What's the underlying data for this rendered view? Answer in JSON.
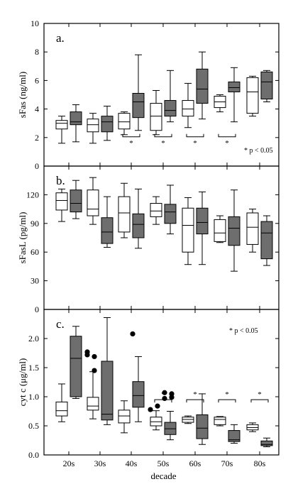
{
  "colors": {
    "white_box": "#ffffff",
    "gray_box": "#6e6e6e",
    "outline": "#000000",
    "outlier": "#000000"
  },
  "chart_data": [
    {
      "panel": "a.",
      "type": "box",
      "ylabel": "sFas (ng/ml)",
      "ylim": [
        0,
        10
      ],
      "yticks": [
        "0",
        "2",
        "4",
        "6",
        "8",
        "10"
      ],
      "categories": [
        "20s",
        "30s",
        "40s",
        "50s",
        "60s",
        "70s",
        "80s"
      ],
      "series_colors": [
        "white",
        "gray"
      ],
      "annotation": "* p < 0.05",
      "significant_categories": [
        "40s",
        "50s",
        "60s",
        "70s"
      ],
      "boxes": [
        {
          "category": "20s",
          "fill": "white",
          "whisker_low": 1.6,
          "q1": 2.6,
          "median": 3.0,
          "q3": 3.2,
          "whisker_high": 3.5
        },
        {
          "category": "20s",
          "fill": "gray",
          "whisker_low": 1.7,
          "q1": 2.9,
          "median": 3.1,
          "q3": 3.8,
          "whisker_high": 4.3
        },
        {
          "category": "30s",
          "fill": "white",
          "whisker_low": 1.6,
          "q1": 2.4,
          "median": 2.9,
          "q3": 3.3,
          "whisker_high": 3.7
        },
        {
          "category": "30s",
          "fill": "gray",
          "whisker_low": 1.8,
          "q1": 2.4,
          "median": 3.1,
          "q3": 3.5,
          "whisker_high": 4.2
        },
        {
          "category": "40s",
          "fill": "white",
          "whisker_low": 2.2,
          "q1": 2.6,
          "median": 3.1,
          "q3": 3.7,
          "whisker_high": 3.8
        },
        {
          "category": "40s",
          "fill": "gray",
          "whisker_low": 2.5,
          "q1": 3.4,
          "median": 4.5,
          "q3": 5.1,
          "whisker_high": 7.8
        },
        {
          "category": "50s",
          "fill": "white",
          "whisker_low": 2.2,
          "q1": 2.5,
          "median": 3.5,
          "q3": 4.4,
          "whisker_high": 5.3
        },
        {
          "category": "50s",
          "fill": "gray",
          "whisker_low": 3.1,
          "q1": 3.5,
          "median": 3.9,
          "q3": 4.6,
          "whisker_high": 6.7
        },
        {
          "category": "60s",
          "fill": "white",
          "whisker_low": 2.7,
          "q1": 3.5,
          "median": 4.0,
          "q3": 4.6,
          "whisker_high": 5.8
        },
        {
          "category": "60s",
          "fill": "gray",
          "whisker_low": 3.3,
          "q1": 4.4,
          "median": 5.4,
          "q3": 6.8,
          "whisker_high": 8.0
        },
        {
          "category": "70s",
          "fill": "white",
          "whisker_low": 3.8,
          "q1": 4.1,
          "median": 4.5,
          "q3": 4.9,
          "whisker_high": 5.0
        },
        {
          "category": "70s",
          "fill": "gray",
          "whisker_low": 3.1,
          "q1": 5.2,
          "median": 5.5,
          "q3": 5.9,
          "whisker_high": 6.9
        },
        {
          "category": "80s",
          "fill": "white",
          "whisker_low": 3.5,
          "q1": 3.7,
          "median": 5.2,
          "q3": 6.2,
          "whisker_high": 6.3
        },
        {
          "category": "80s",
          "fill": "gray",
          "whisker_low": 4.5,
          "q1": 4.7,
          "median": 5.9,
          "q3": 6.6,
          "whisker_high": 6.7
        }
      ]
    },
    {
      "panel": "b.",
      "type": "box",
      "ylabel": "sFasL (pg/ml)",
      "ylim": [
        0,
        150
      ],
      "yticks": [
        "0",
        "30",
        "60",
        "90",
        "120"
      ],
      "categories": [
        "20s",
        "30s",
        "40s",
        "50s",
        "60s",
        "70s",
        "80s"
      ],
      "series_colors": [
        "white",
        "gray"
      ],
      "boxes": [
        {
          "category": "20s",
          "fill": "white",
          "whisker_low": 92,
          "q1": 104,
          "median": 114,
          "q3": 122,
          "whisker_high": 126
        },
        {
          "category": "20s",
          "fill": "gray",
          "whisker_low": 95,
          "q1": 102,
          "median": 111,
          "q3": 125,
          "whisker_high": 135
        },
        {
          "category": "30s",
          "fill": "white",
          "whisker_low": 89,
          "q1": 98,
          "median": 105,
          "q3": 125,
          "whisker_high": 138
        },
        {
          "category": "30s",
          "fill": "gray",
          "whisker_low": 65,
          "q1": 69,
          "median": 81,
          "q3": 96,
          "whisker_high": 118
        },
        {
          "category": "40s",
          "fill": "white",
          "whisker_low": 75,
          "q1": 81,
          "median": 101,
          "q3": 118,
          "whisker_high": 132
        },
        {
          "category": "40s",
          "fill": "gray",
          "whisker_low": 64,
          "q1": 75,
          "median": 89,
          "q3": 100,
          "whisker_high": 126
        },
        {
          "category": "50s",
          "fill": "white",
          "whisker_low": 89,
          "q1": 97,
          "median": 103,
          "q3": 111,
          "whisker_high": 118
        },
        {
          "category": "50s",
          "fill": "gray",
          "whisker_low": 79,
          "q1": 90,
          "median": 102,
          "q3": 110,
          "whisker_high": 130
        },
        {
          "category": "60s",
          "fill": "white",
          "whisker_low": 47,
          "q1": 60,
          "median": 88,
          "q3": 106,
          "whisker_high": 117
        },
        {
          "category": "60s",
          "fill": "gray",
          "whisker_low": 47,
          "q1": 79,
          "median": 91,
          "q3": 106,
          "whisker_high": 123
        },
        {
          "category": "70s",
          "fill": "white",
          "whisker_low": 70,
          "q1": 71,
          "median": 80,
          "q3": 94,
          "whisker_high": 98
        },
        {
          "category": "70s",
          "fill": "gray",
          "whisker_low": 40,
          "q1": 67,
          "median": 85,
          "q3": 97,
          "whisker_high": 125
        },
        {
          "category": "80s",
          "fill": "white",
          "whisker_low": 60,
          "q1": 68,
          "median": 86,
          "q3": 101,
          "whisker_high": 105
        },
        {
          "category": "80s",
          "fill": "gray",
          "whisker_low": 46,
          "q1": 53,
          "median": 80,
          "q3": 92,
          "whisker_high": 98
        }
      ]
    },
    {
      "panel": "c.",
      "type": "box",
      "ylabel": "cyt c (μg/ml)",
      "xlabel": "decade",
      "ylim": [
        0,
        2.5
      ],
      "yticks": [
        "0.0",
        "0.5",
        "1.0",
        "1.5",
        "2.0"
      ],
      "categories": [
        "20s",
        "30s",
        "40s",
        "50s",
        "60s",
        "70s",
        "80s"
      ],
      "series_colors": [
        "white",
        "gray"
      ],
      "annotation": "* p < 0.05",
      "significant_categories": [
        "50s",
        "60s",
        "70s",
        "80s"
      ],
      "boxes": [
        {
          "category": "20s",
          "fill": "white",
          "whisker_low": 0.57,
          "q1": 0.67,
          "median": 0.76,
          "q3": 0.91,
          "whisker_high": 1.22,
          "outliers": []
        },
        {
          "category": "20s",
          "fill": "gray",
          "whisker_low": 0.97,
          "q1": 1.0,
          "median": 1.66,
          "q3": 2.04,
          "whisker_high": 2.21,
          "outliers": []
        },
        {
          "category": "30s",
          "fill": "white",
          "whisker_low": 0.62,
          "q1": 0.77,
          "median": 0.84,
          "q3": 0.99,
          "whisker_high": 1.43,
          "outliers": [
            1.72,
            1.69,
            1.77,
            1.45
          ]
        },
        {
          "category": "30s",
          "fill": "gray",
          "whisker_low": 0.52,
          "q1": 0.6,
          "median": 0.7,
          "q3": 1.61,
          "whisker_high": 2.36,
          "outliers": []
        },
        {
          "category": "40s",
          "fill": "white",
          "whisker_low": 0.38,
          "q1": 0.55,
          "median": 0.67,
          "q3": 0.77,
          "whisker_high": 0.93,
          "outliers": []
        },
        {
          "category": "40s",
          "fill": "gray",
          "whisker_low": 0.57,
          "q1": 0.82,
          "median": 1.02,
          "q3": 1.26,
          "whisker_high": 1.69,
          "outliers": [
            2.08
          ]
        },
        {
          "category": "50s",
          "fill": "white",
          "whisker_low": 0.43,
          "q1": 0.5,
          "median": 0.57,
          "q3": 0.65,
          "whisker_high": 0.76,
          "outliers": [
            0.78,
            0.84
          ]
        },
        {
          "category": "50s",
          "fill": "gray",
          "whisker_low": 0.26,
          "q1": 0.35,
          "median": 0.45,
          "q3": 0.56,
          "whisker_high": 0.75,
          "outliers": [
            1.07,
            1.05,
            0.97,
            0.99
          ]
        },
        {
          "category": "60s",
          "fill": "white",
          "whisker_low": 0.54,
          "q1": 0.56,
          "median": 0.61,
          "q3": 0.65,
          "whisker_high": 0.67,
          "outliers": []
        },
        {
          "category": "60s",
          "fill": "gray",
          "whisker_low": 0.18,
          "q1": 0.28,
          "median": 0.46,
          "q3": 0.69,
          "whisker_high": 1.05,
          "outliers": []
        },
        {
          "category": "70s",
          "fill": "white",
          "whisker_low": 0.5,
          "q1": 0.52,
          "median": 0.61,
          "q3": 0.65,
          "whisker_high": 0.66,
          "outliers": []
        },
        {
          "category": "70s",
          "fill": "gray",
          "whisker_low": 0.2,
          "q1": 0.23,
          "median": 0.26,
          "q3": 0.42,
          "whisker_high": 0.52,
          "outliers": []
        },
        {
          "category": "80s",
          "fill": "white",
          "whisker_low": 0.4,
          "q1": 0.43,
          "median": 0.47,
          "q3": 0.52,
          "whisker_high": 0.55,
          "outliers": []
        },
        {
          "category": "80s",
          "fill": "gray",
          "whisker_low": 0.14,
          "q1": 0.16,
          "median": 0.18,
          "q3": 0.24,
          "whisker_high": 0.29,
          "outliers": []
        }
      ]
    }
  ]
}
